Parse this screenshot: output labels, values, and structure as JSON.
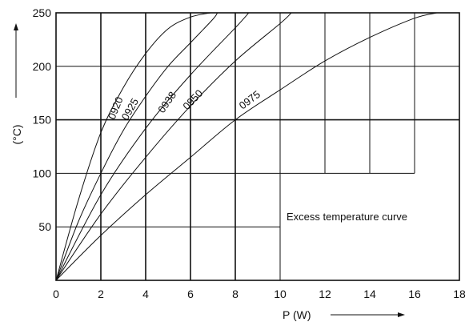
{
  "chart_data": {
    "type": "line",
    "title": "",
    "xlabel": "P (W)",
    "ylabel": "(°C)",
    "xlim": [
      0,
      18
    ],
    "ylim": [
      0,
      250
    ],
    "x_ticks": [
      "0",
      "2",
      "4",
      "6",
      "8",
      "10",
      "12",
      "14",
      "16",
      "18"
    ],
    "y_ticks": [
      "50",
      "100",
      "150",
      "200",
      "250"
    ],
    "grid": true,
    "annotation": "Excess temperature curve",
    "series": [
      {
        "name": "0920",
        "x": [
          0,
          1,
          2,
          3,
          4,
          5,
          6,
          6.9
        ],
        "y": [
          0,
          75,
          138,
          180,
          212,
          235,
          246,
          250
        ]
      },
      {
        "name": "0925",
        "x": [
          0,
          1,
          2,
          3,
          4,
          5,
          6,
          7,
          7.2
        ],
        "y": [
          0,
          55,
          100,
          140,
          172,
          200,
          222,
          244,
          250
        ]
      },
      {
        "name": "0938",
        "x": [
          0,
          2,
          4,
          6,
          8,
          8.6
        ],
        "y": [
          0,
          80,
          142,
          192,
          236,
          250
        ]
      },
      {
        "name": "0950",
        "x": [
          0,
          2,
          4,
          6,
          8,
          10,
          10.5
        ],
        "y": [
          0,
          62,
          115,
          163,
          205,
          240,
          250
        ]
      },
      {
        "name": "0975",
        "x": [
          0,
          2,
          4,
          6,
          8,
          10,
          12,
          14,
          16,
          17
        ],
        "y": [
          0,
          42,
          80,
          115,
          150,
          178,
          205,
          227,
          245,
          250
        ]
      }
    ]
  }
}
